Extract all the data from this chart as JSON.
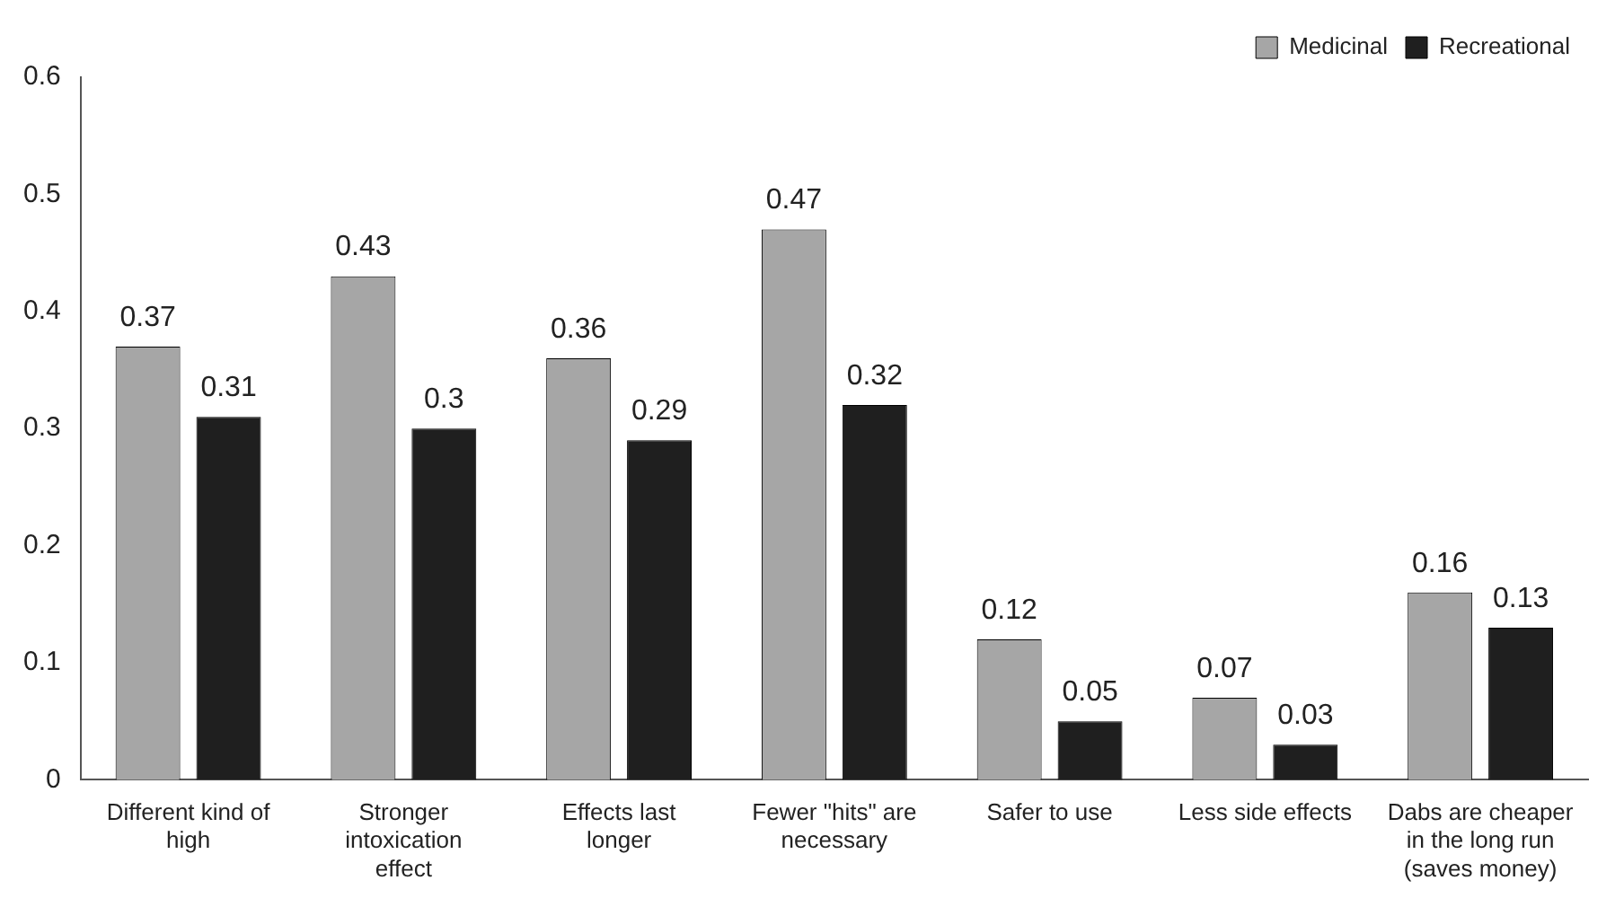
{
  "chart_data": {
    "type": "bar",
    "categories": [
      "Different kind of high",
      "Stronger intoxication effect",
      "Effects last longer",
      "Fewer \"hits\" are necessary",
      "Safer to use",
      "Less side effects",
      "Dabs are cheaper in the long run (saves money)"
    ],
    "series": [
      {
        "name": "Medicinal",
        "color": "#a6a6a6",
        "values": [
          0.37,
          0.43,
          0.36,
          0.47,
          0.12,
          0.07,
          0.16
        ]
      },
      {
        "name": "Recreational",
        "color": "#1f1f1f",
        "values": [
          0.31,
          0.3,
          0.29,
          0.32,
          0.05,
          0.03,
          0.13
        ]
      }
    ],
    "ylim": [
      0,
      0.6
    ],
    "yticks": [
      0,
      0.1,
      0.2,
      0.3,
      0.4,
      0.5,
      0.6
    ],
    "grid": false,
    "legend": "top right",
    "data_labels": true
  }
}
